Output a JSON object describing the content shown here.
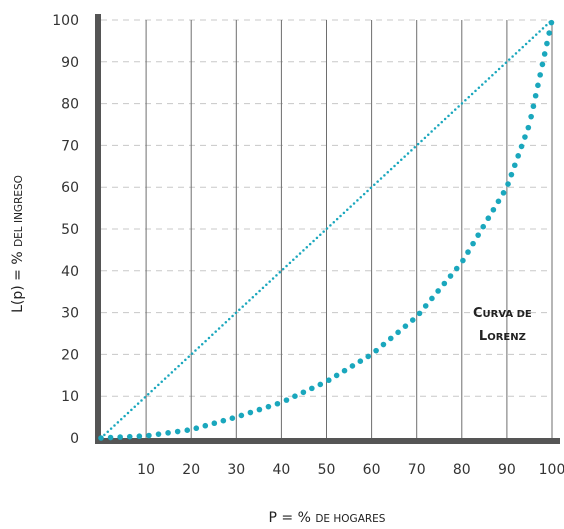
{
  "chart_data": {
    "type": "line",
    "xlabel": {
      "lead": "P = % ",
      "smallcaps": "de hogares"
    },
    "ylabel": {
      "lead": "L(p) = % ",
      "smallcaps": "del ingreso"
    },
    "xlim": [
      0,
      100
    ],
    "ylim": [
      0,
      100
    ],
    "x_ticks": [
      "10",
      "20",
      "30",
      "40",
      "50",
      "60",
      "70",
      "80",
      "90",
      "100"
    ],
    "y_ticks": [
      "0",
      "10",
      "20",
      "30",
      "40",
      "50",
      "60",
      "70",
      "80",
      "90",
      "100"
    ],
    "grid": {
      "vertical": true,
      "horizontal": true
    },
    "series": [
      {
        "style": "dotted",
        "color": "#1aa7bd",
        "x": [
          0,
          100
        ],
        "y": [
          0,
          100
        ]
      },
      {
        "style": "dotted-heavy",
        "color": "#1aa7bd",
        "x": [
          0,
          10,
          20,
          30,
          40,
          50,
          60,
          70,
          80,
          90,
          95,
          100
        ],
        "y": [
          0,
          0.5,
          2,
          5,
          8.5,
          13.5,
          20,
          29,
          42,
          60,
          75,
          100
        ]
      }
    ],
    "annotation": {
      "line1": {
        "initial": "C",
        "rest": "urva de"
      },
      "line2": {
        "initial": "L",
        "rest": "orenz"
      },
      "x": 89,
      "y": 27
    },
    "colors": {
      "accent": "#1aa7bd",
      "axis": "#555555",
      "grid_v": "#6e6e6e",
      "grid_h": "#c8c8c8"
    }
  }
}
